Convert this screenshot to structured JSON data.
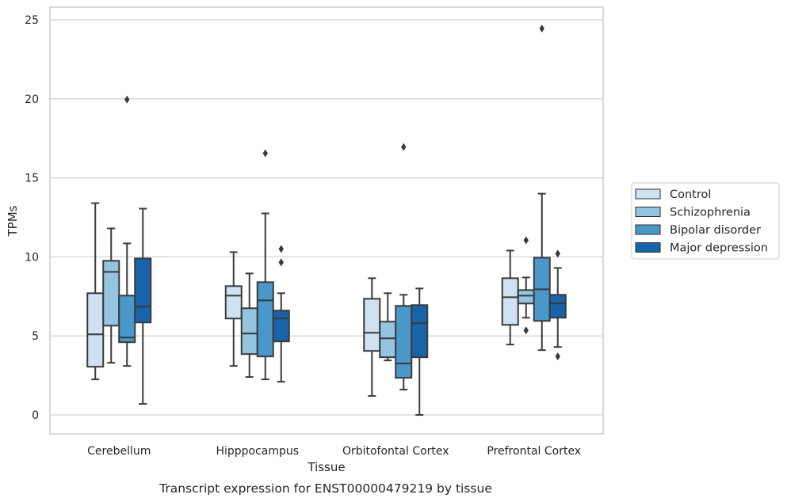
{
  "chart_data": {
    "type": "box",
    "caption": "Transcript expression for ENST00000479219 by tissue",
    "xlabel": "Tissue",
    "ylabel": "TPMs",
    "ylim": [
      -1.2,
      25.8
    ],
    "yticks": [
      0,
      5,
      10,
      15,
      20,
      25
    ],
    "grid": true,
    "legend_placement": "right",
    "categories": [
      "Cerebellum",
      "Hipppocampus",
      "Orbitofontal Cortex",
      "Prefrontal Cortex"
    ],
    "series": [
      {
        "name": "Control",
        "color": "#d0e1f2",
        "boxes": [
          {
            "whisker_low": 2.25,
            "q1": 3.05,
            "median": 5.1,
            "q3": 7.7,
            "whisker_high": 13.4,
            "outliers": []
          },
          {
            "whisker_low": 3.1,
            "q1": 6.1,
            "median": 7.55,
            "q3": 8.15,
            "whisker_high": 10.3,
            "outliers": []
          },
          {
            "whisker_low": 1.2,
            "q1": 4.05,
            "median": 5.2,
            "q3": 7.35,
            "whisker_high": 8.65,
            "outliers": []
          },
          {
            "whisker_low": 4.45,
            "q1": 5.7,
            "median": 7.45,
            "q3": 8.65,
            "whisker_high": 10.4,
            "outliers": []
          }
        ]
      },
      {
        "name": "Schizophrenia",
        "color": "#94c4df",
        "boxes": [
          {
            "whisker_low": 3.3,
            "q1": 5.65,
            "median": 9.05,
            "q3": 9.75,
            "whisker_high": 11.8,
            "outliers": []
          },
          {
            "whisker_low": 2.4,
            "q1": 3.85,
            "median": 5.15,
            "q3": 6.75,
            "whisker_high": 8.95,
            "outliers": []
          },
          {
            "whisker_low": 3.45,
            "q1": 3.65,
            "median": 4.85,
            "q3": 5.9,
            "whisker_high": 7.7,
            "outliers": []
          },
          {
            "whisker_low": 6.15,
            "q1": 7.05,
            "median": 7.55,
            "q3": 7.9,
            "whisker_high": 8.7,
            "outliers": [
              11.05,
              5.35
            ]
          }
        ]
      },
      {
        "name": "Bipolar disorder",
        "color": "#4a98c9",
        "boxes": [
          {
            "whisker_low": 3.1,
            "q1": 4.6,
            "median": 4.9,
            "q3": 7.55,
            "whisker_high": 10.85,
            "outliers": [
              19.95
            ]
          },
          {
            "whisker_low": 2.25,
            "q1": 3.7,
            "median": 7.25,
            "q3": 8.4,
            "whisker_high": 12.75,
            "outliers": [
              16.55
            ]
          },
          {
            "whisker_low": 1.6,
            "q1": 2.35,
            "median": 3.25,
            "q3": 6.9,
            "whisker_high": 7.6,
            "outliers": [
              16.95
            ]
          },
          {
            "whisker_low": 4.1,
            "q1": 5.95,
            "median": 7.95,
            "q3": 9.95,
            "whisker_high": 14.0,
            "outliers": [
              24.45
            ]
          }
        ]
      },
      {
        "name": "Major depression",
        "color": "#1764ab",
        "boxes": [
          {
            "whisker_low": 0.7,
            "q1": 5.85,
            "median": 6.85,
            "q3": 9.9,
            "whisker_high": 13.05,
            "outliers": []
          },
          {
            "whisker_low": 2.1,
            "q1": 4.65,
            "median": 6.1,
            "q3": 6.6,
            "whisker_high": 7.7,
            "outliers": [
              10.5,
              9.65
            ]
          },
          {
            "whisker_low": 0.0,
            "q1": 3.65,
            "median": 5.8,
            "q3": 6.95,
            "whisker_high": 8.0,
            "outliers": []
          },
          {
            "whisker_low": 4.3,
            "q1": 6.15,
            "median": 7.05,
            "q3": 7.6,
            "whisker_high": 9.3,
            "outliers": [
              10.2,
              3.7
            ]
          }
        ]
      }
    ]
  }
}
